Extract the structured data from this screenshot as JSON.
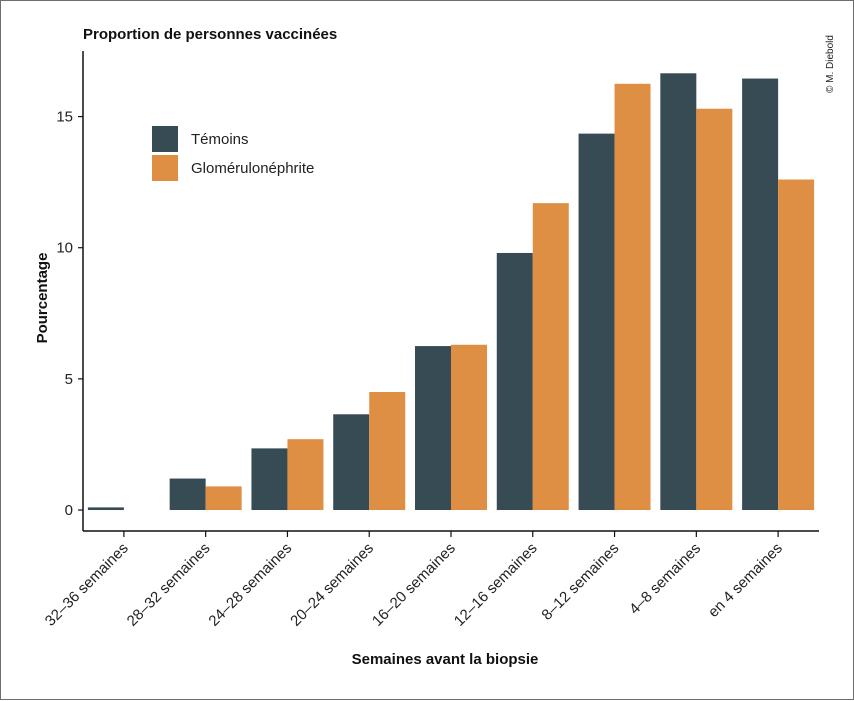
{
  "chart_data": {
    "type": "bar",
    "title": "Proportion de personnes vaccinées",
    "xlabel": "Semaines avant la biopsie",
    "ylabel": "Pourcentage",
    "categories": [
      "32–36 semaines",
      "28–32 semaines",
      "24–28 semaines",
      "20–24 semaines",
      "16–20 semaines",
      "12–16 semaines",
      "8–12 semaines",
      "4–8 semaines",
      "en 4 semaines"
    ],
    "series": [
      {
        "name": "Témoins",
        "color": "#364b53",
        "values": [
          0.1,
          1.2,
          2.35,
          3.65,
          6.25,
          9.8,
          14.35,
          16.65,
          16.45
        ]
      },
      {
        "name": "Glomérulonéphrite",
        "color": "#df8f43",
        "values": [
          0,
          0.9,
          2.7,
          4.5,
          6.3,
          11.7,
          16.25,
          15.3,
          12.6
        ]
      }
    ],
    "yticks": [
      0,
      5,
      10,
      15
    ],
    "ylim": [
      -0.8,
      17.5
    ],
    "grid": false,
    "legend_position": "top-left",
    "credit": "© M. Diebold"
  }
}
